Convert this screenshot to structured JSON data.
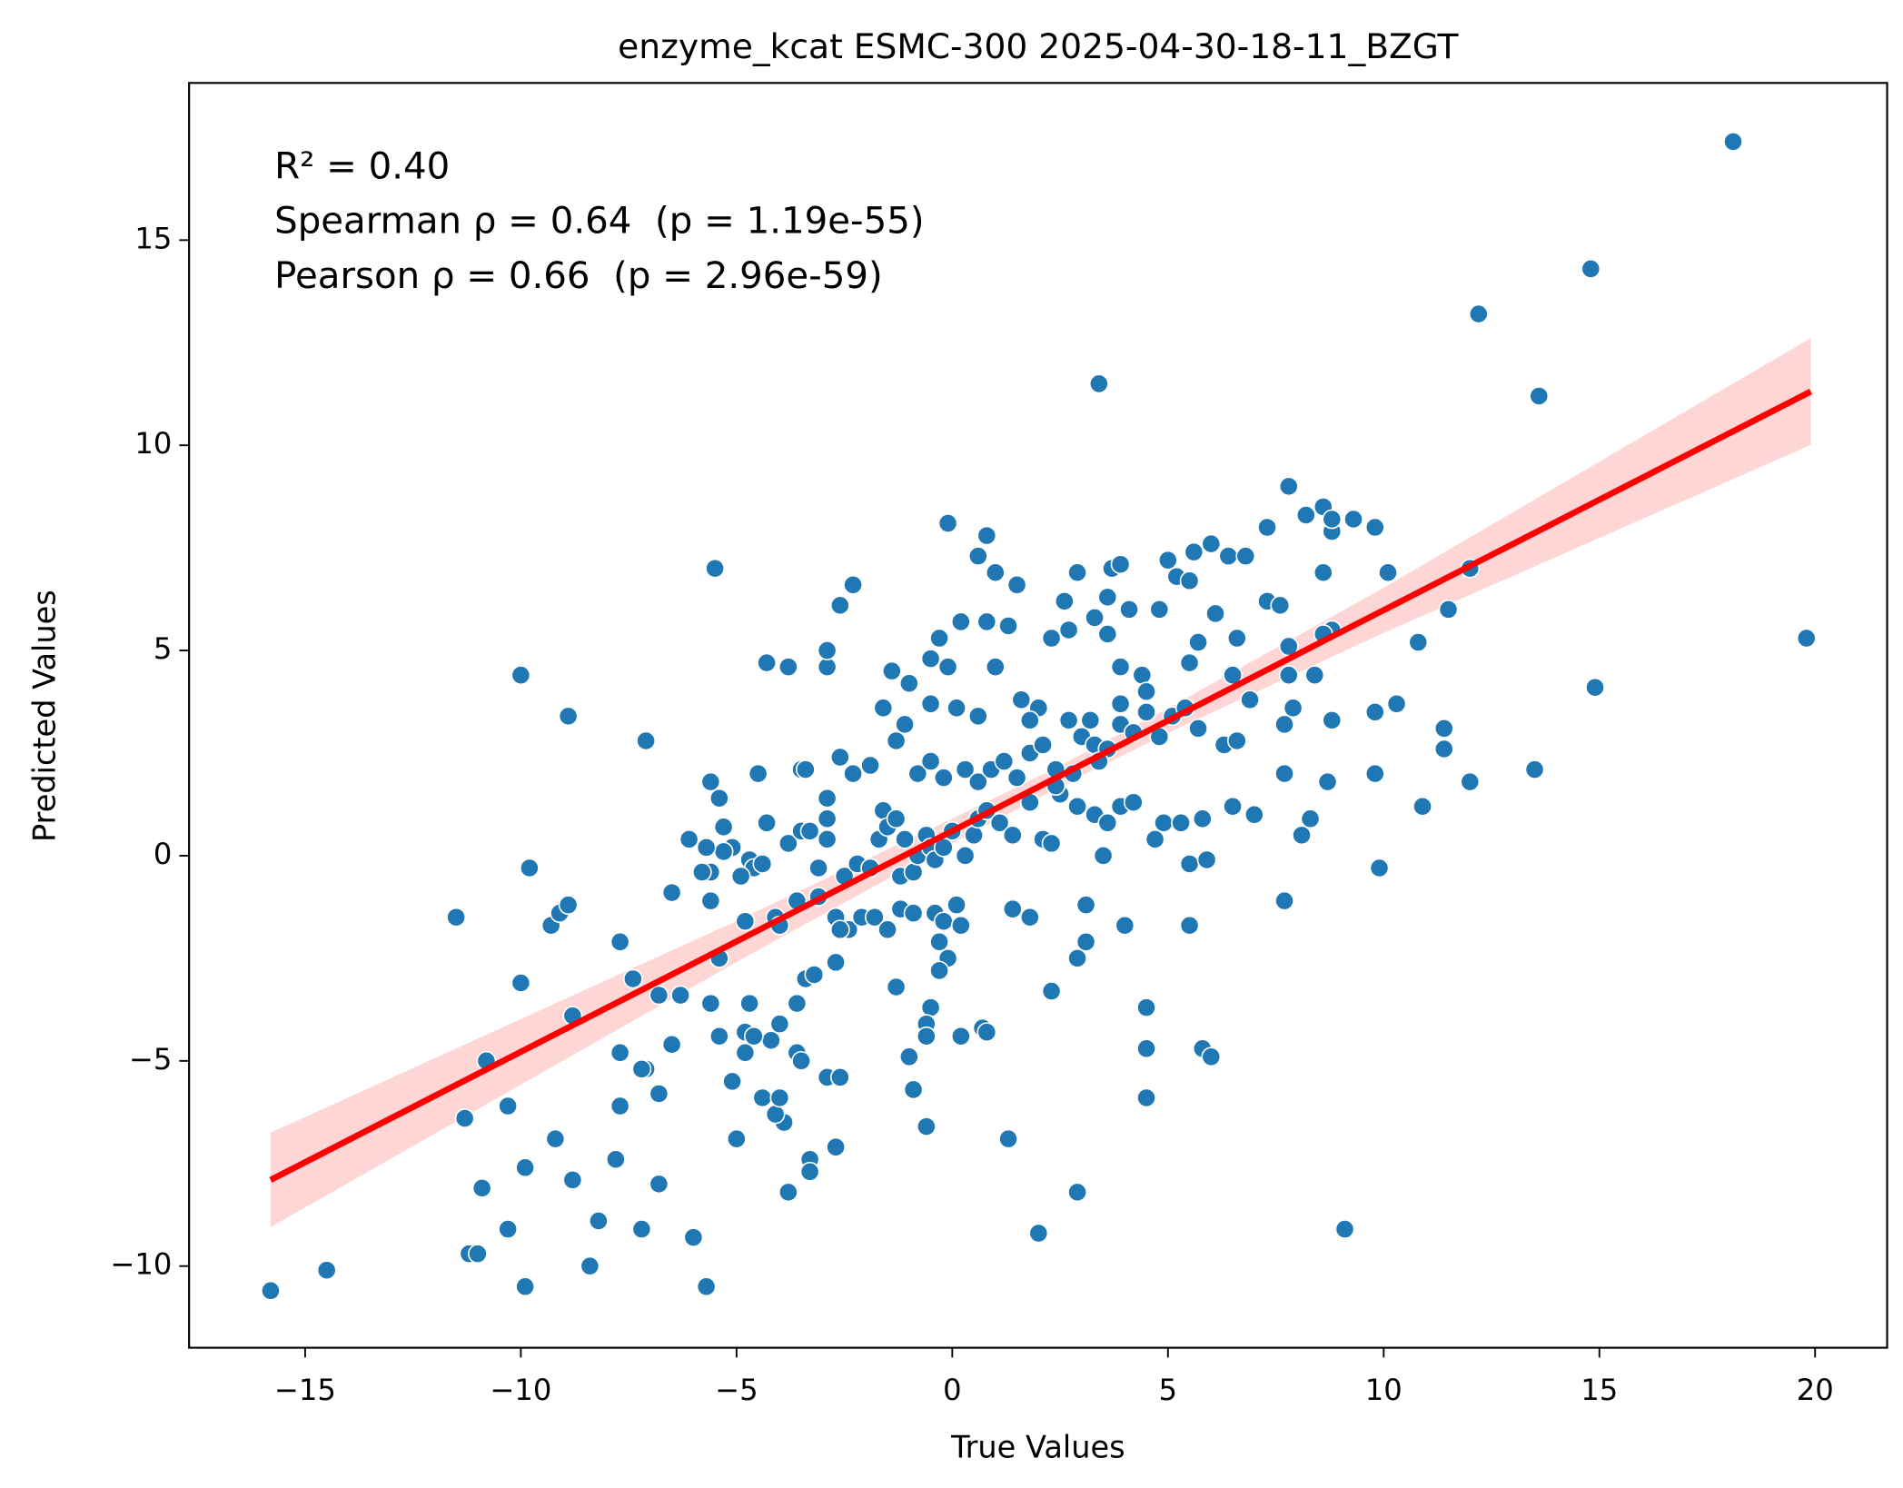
{
  "chart_data": {
    "type": "scatter",
    "title": "enzyme_kcat ESMC-300 2025-04-30-18-11_BZGT",
    "xlabel": "True Values",
    "ylabel": "Predicted Values",
    "annotations": [
      "R² = 0.40",
      "Spearman ρ = 0.64  (p = 1.19e-55)",
      "Pearson ρ = 0.66  (p = 2.96e-59)"
    ],
    "color": "#1f77b4",
    "x": [
      18.1,
      14.8,
      12.2,
      13.6,
      3.4,
      19.8,
      14.9,
      13.5,
      12.0,
      10.9,
      9.9,
      9.1,
      2.0,
      2.9,
      -15.8,
      -14.5,
      -9.9,
      -5.7,
      -8.4,
      -6.0,
      -10.3,
      -7.2,
      -8.2,
      -11.2,
      -11.0,
      -10.9,
      -6.8,
      -3.8,
      -8.8,
      -9.9,
      -7.8,
      -3.3,
      -3.3,
      -2.7,
      -9.2,
      -5.0,
      -11.3,
      -10.3,
      -7.7,
      -3.9,
      -4.1,
      -4.4,
      -4.0,
      -6.8,
      -5.1,
      -7.1,
      -7.2,
      -2.9,
      -2.6,
      -10.8,
      -7.7,
      -4.8,
      -3.6,
      -3.5,
      -6.5,
      -4.2,
      -5.4,
      -4.8,
      -4.6,
      -4.0,
      -8.8,
      -5.6,
      -4.7,
      -3.6,
      -6.3,
      -6.8,
      -10.0,
      -7.4,
      -3.4,
      -3.2,
      -2.7,
      -5.4,
      -7.7,
      -11.5,
      -9.3,
      -9.1,
      -8.9,
      -9.8,
      -5.6,
      -4.8,
      -4.1,
      -4.0,
      -3.6,
      -3.1,
      -2.7,
      -2.4,
      -2.6,
      -2.1,
      -1.8,
      -1.5,
      -1.2,
      -0.9,
      -0.4,
      -0.2,
      0.1,
      0.2,
      -0.3,
      -0.1,
      -0.3,
      -1.3,
      -0.5,
      -0.6,
      -0.6,
      0.2,
      0.7,
      0.8,
      -1.0,
      -0.9,
      -0.6,
      1.3,
      2.3,
      3.1,
      2.9,
      3.1,
      4.0,
      5.5,
      5.8,
      6.0,
      4.5,
      4.5,
      4.5,
      7.7,
      1.4,
      1.8,
      -6.1,
      -5.3,
      -5.1,
      -5.3,
      -5.7,
      -5.6,
      -6.5,
      -4.7,
      -4.6,
      -4.4,
      -4.9,
      -4.3,
      -3.8,
      -3.5,
      -3.3,
      -3.1,
      -2.9,
      -2.9,
      -2.5,
      -2.2,
      -1.9,
      -1.7,
      -1.6,
      -1.5,
      -1.3,
      -1.1,
      -1.2,
      -0.9,
      -0.8,
      -0.6,
      -0.5,
      -0.4,
      -0.2,
      0.0,
      0.3,
      0.5,
      0.6,
      0.8,
      1.1,
      1.4,
      1.8,
      2.1,
      2.3,
      2.5,
      2.9,
      3.3,
      3.6,
      3.5,
      3.9,
      4.2,
      4.7,
      4.9,
      5.3,
      5.5,
      5.8,
      5.9,
      6.5,
      7.0,
      7.7,
      8.1,
      8.3,
      8.7,
      9.8,
      11.4,
      11.4,
      10.3,
      9.8,
      8.8,
      -5.4,
      -5.6,
      -5.8,
      -4.5,
      -3.5,
      -3.4,
      -2.9,
      -2.6,
      -2.3,
      -1.9,
      -1.6,
      -1.3,
      -1.1,
      -0.8,
      -0.5,
      -0.2,
      0.3,
      0.6,
      0.9,
      1.2,
      1.5,
      1.8,
      2.1,
      2.4,
      2.7,
      3.0,
      3.3,
      3.6,
      3.9,
      4.2,
      4.5,
      4.8,
      5.1,
      5.4,
      5.7,
      6.3,
      6.6,
      6.9,
      7.7,
      7.9,
      8.4,
      7.8,
      -4.3,
      -3.8,
      -2.9,
      -2.9,
      -2.6,
      -2.3,
      -5.5,
      -7.1,
      -8.9,
      -10.0,
      -1.4,
      -1.0,
      -0.5,
      -0.3,
      0.2,
      -0.1,
      -0.5,
      0.1,
      0.6,
      0.8,
      0.6,
      0.8,
      -0.1,
      1.0,
      1.5,
      1.3,
      1.0,
      1.6,
      2.3,
      2.7,
      2.6,
      2.9,
      3.3,
      3.6,
      3.6,
      3.7,
      3.9,
      4.1,
      4.8,
      5.0,
      5.2,
      5.5,
      5.7,
      5.6,
      6.0,
      6.4,
      6.8,
      6.1,
      6.6,
      7.3,
      7.6,
      7.3,
      7.8,
      8.2,
      8.6,
      8.8,
      8.8,
      9.3,
      9.8,
      10.1,
      8.6,
      8.8,
      8.6,
      7.8,
      6.5,
      5.5,
      4.4,
      3.9,
      10.8,
      11.5,
      12.0,
      3.9,
      4.5,
      3.2,
      2.0,
      1.8,
      2.8,
      3.4,
      2.4
    ],
    "values": [
      17.4,
      14.3,
      13.2,
      11.2,
      11.5,
      5.3,
      4.1,
      2.1,
      1.8,
      1.2,
      -0.3,
      -9.1,
      -9.2,
      -8.2,
      -10.6,
      -10.1,
      -10.5,
      -10.5,
      -10.0,
      -9.3,
      -9.1,
      -9.1,
      -8.9,
      -9.7,
      -9.7,
      -8.1,
      -8.0,
      -8.2,
      -7.9,
      -7.6,
      -7.4,
      -7.4,
      -7.7,
      -7.1,
      -6.9,
      -6.9,
      -6.4,
      -6.1,
      -6.1,
      -6.5,
      -6.3,
      -5.9,
      -5.9,
      -5.8,
      -5.5,
      -5.2,
      -5.2,
      -5.4,
      -5.4,
      -5.0,
      -4.8,
      -4.8,
      -4.8,
      -5.0,
      -4.6,
      -4.5,
      -4.4,
      -4.3,
      -4.4,
      -4.1,
      -3.9,
      -3.6,
      -3.6,
      -3.6,
      -3.4,
      -3.4,
      -3.1,
      -3.0,
      -3.0,
      -2.9,
      -2.6,
      -2.5,
      -2.1,
      -1.5,
      -1.7,
      -1.4,
      -1.2,
      -0.3,
      -1.1,
      -1.6,
      -1.5,
      -1.7,
      -1.1,
      -1.0,
      -1.5,
      -1.8,
      -1.8,
      -1.5,
      -1.5,
      -1.8,
      -1.3,
      -1.4,
      -1.4,
      -1.6,
      -1.2,
      -1.7,
      -2.1,
      -2.5,
      -2.8,
      -3.2,
      -3.7,
      -4.1,
      -4.4,
      -4.4,
      -4.2,
      -4.3,
      -4.9,
      -5.7,
      -6.6,
      -6.9,
      -3.3,
      -2.1,
      -2.5,
      -1.2,
      -1.7,
      -1.7,
      -4.7,
      -4.9,
      -3.7,
      -4.7,
      -5.9,
      -1.1,
      -1.3,
      -1.5,
      0.4,
      0.7,
      0.2,
      0.1,
      0.2,
      -0.4,
      -0.9,
      -0.1,
      -0.3,
      -0.2,
      -0.5,
      0.8,
      0.3,
      0.6,
      0.6,
      -0.3,
      0.4,
      0.9,
      -0.5,
      -0.2,
      -0.3,
      0.4,
      1.1,
      0.7,
      0.9,
      0.4,
      -0.5,
      -0.4,
      0.0,
      0.5,
      0.2,
      -0.1,
      0.2,
      0.6,
      0.0,
      0.5,
      0.9,
      1.1,
      0.8,
      0.5,
      1.3,
      0.4,
      0.3,
      1.5,
      1.2,
      1.0,
      0.8,
      0.0,
      1.2,
      1.3,
      0.4,
      0.8,
      0.8,
      -0.2,
      0.9,
      -0.1,
      1.2,
      1.0,
      2.0,
      0.5,
      0.9,
      1.8,
      2.0,
      2.6,
      3.1,
      3.7,
      3.5,
      3.3,
      1.4,
      1.8,
      -0.4,
      2.0,
      2.1,
      2.1,
      1.4,
      2.4,
      2.0,
      2.2,
      3.6,
      2.8,
      3.2,
      2.0,
      2.3,
      1.9,
      2.1,
      1.8,
      2.1,
      2.3,
      1.9,
      2.5,
      2.7,
      2.1,
      3.3,
      2.9,
      2.7,
      2.6,
      3.2,
      3.0,
      3.5,
      2.9,
      3.4,
      3.6,
      3.1,
      2.7,
      2.8,
      3.8,
      3.2,
      3.6,
      4.4,
      4.4,
      4.7,
      4.6,
      4.6,
      5.0,
      6.1,
      6.6,
      7.0,
      2.8,
      3.4,
      4.4,
      4.5,
      4.2,
      4.8,
      5.3,
      5.7,
      4.6,
      3.7,
      3.6,
      3.4,
      5.7,
      7.3,
      7.8,
      8.1,
      6.9,
      6.6,
      5.6,
      4.6,
      3.8,
      5.3,
      5.5,
      6.2,
      6.9,
      5.8,
      5.4,
      6.3,
      7.0,
      7.1,
      6.0,
      6.0,
      7.2,
      6.8,
      6.7,
      5.2,
      7.4,
      7.6,
      7.3,
      7.3,
      5.9,
      5.3,
      6.2,
      6.1,
      8.0,
      9.0,
      8.3,
      8.5,
      7.9,
      8.2,
      8.2,
      8.0,
      6.9,
      6.9,
      5.5,
      5.4,
      5.1,
      4.4,
      4.7,
      4.4,
      4.6,
      5.2,
      6.0,
      7.0,
      3.7,
      4.0,
      3.3,
      3.6,
      3.3,
      2.0,
      2.3,
      1.7
    ],
    "regression": {
      "x": [
        -15.8,
        19.9
      ],
      "values": [
        -7.9,
        11.31
      ],
      "color": "#ff0000"
    },
    "ci_band": {
      "x": [
        -15.8,
        -5,
        0,
        2.5,
        5,
        10,
        19.9
      ],
      "upper": [
        -6.75,
        -1.59,
        0.9,
        2.19,
        3.59,
        6.53,
        12.61
      ],
      "lower": [
        -9.05,
        -2.59,
        0.3,
        1.69,
        2.99,
        5.43,
        10.01
      ],
      "color": "#ffd6d6"
    },
    "xlim": [
      -17.69,
      21.67
    ],
    "ylim": [
      -11.99,
      18.83
    ],
    "xticks": [
      {
        "value": -15,
        "label": "−15"
      },
      {
        "value": -10,
        "label": "−10"
      },
      {
        "value": -5,
        "label": "−5"
      },
      0,
      5,
      10,
      15,
      20
    ],
    "yticks": [
      {
        "value": -10,
        "label": "−10"
      },
      {
        "value": -5,
        "label": "−5"
      },
      0,
      5,
      10,
      15
    ]
  }
}
